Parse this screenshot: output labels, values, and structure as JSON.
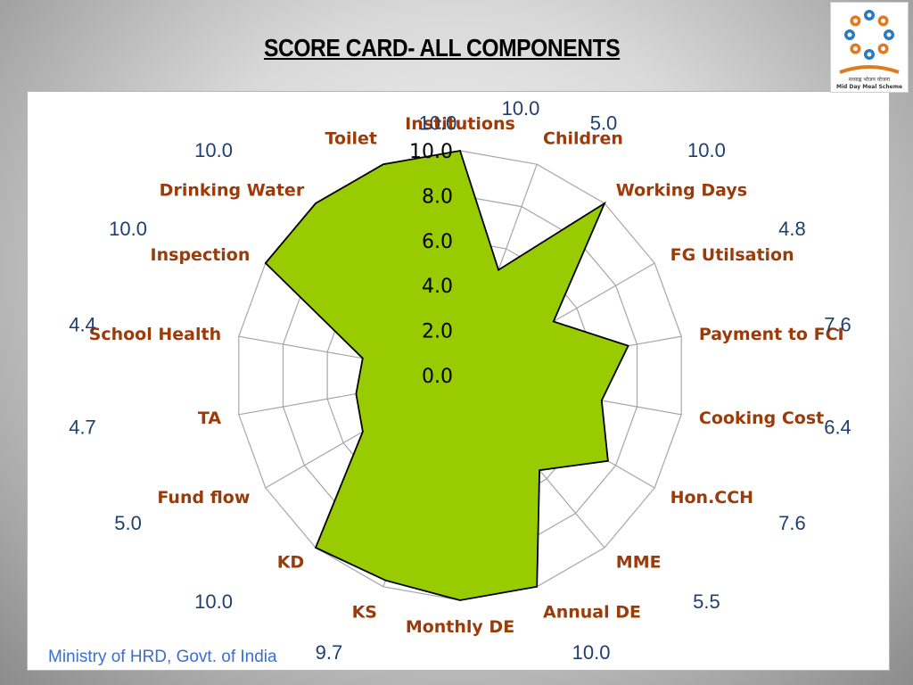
{
  "slide": {
    "title": "SCORE CARD- ALL COMPONENTS",
    "footer": "Ministry of HRD, Govt. of India",
    "logo_text": "मध्याह्न भोजन योजना",
    "logo_subtext": "Mid Day Meal Scheme"
  },
  "chart_data": {
    "type": "radar",
    "categories": [
      "Institutions",
      "Children",
      "Working Days",
      "FG Utilsation",
      "Payment to FCI",
      "Cooking Cost",
      "Hon.CCH",
      "MME",
      "Annual DE",
      "Monthly DE",
      "KS",
      "KD",
      "Fund flow",
      "TA",
      "School Health",
      "Inspection",
      "Drinking Water",
      "Toilet"
    ],
    "values": [
      10.0,
      5.0,
      10.0,
      4.8,
      7.6,
      6.4,
      7.6,
      5.5,
      10.0,
      10.0,
      9.7,
      10.0,
      5.0,
      4.7,
      4.4,
      10.0,
      10.0,
      10.0
    ],
    "value_labels": [
      "10.0",
      "5.0",
      "10.0",
      "4.8",
      "7.6",
      "6.4",
      "7.6",
      "5.5",
      "10.0",
      "",
      "9.7",
      "10.0",
      "5.0",
      "4.7",
      "4.4",
      "10.0",
      "10.0",
      "10.0"
    ],
    "rlim": [
      0,
      10
    ],
    "ticks": [
      "0.0",
      "2.0",
      "4.0",
      "6.0",
      "8.0",
      "10.0"
    ],
    "fill_color": "#99cc00",
    "line_color": "#000000",
    "grid_color": "#a6a6a6",
    "category_color": "#9c3b0a",
    "value_color": "#1f3f6e"
  }
}
